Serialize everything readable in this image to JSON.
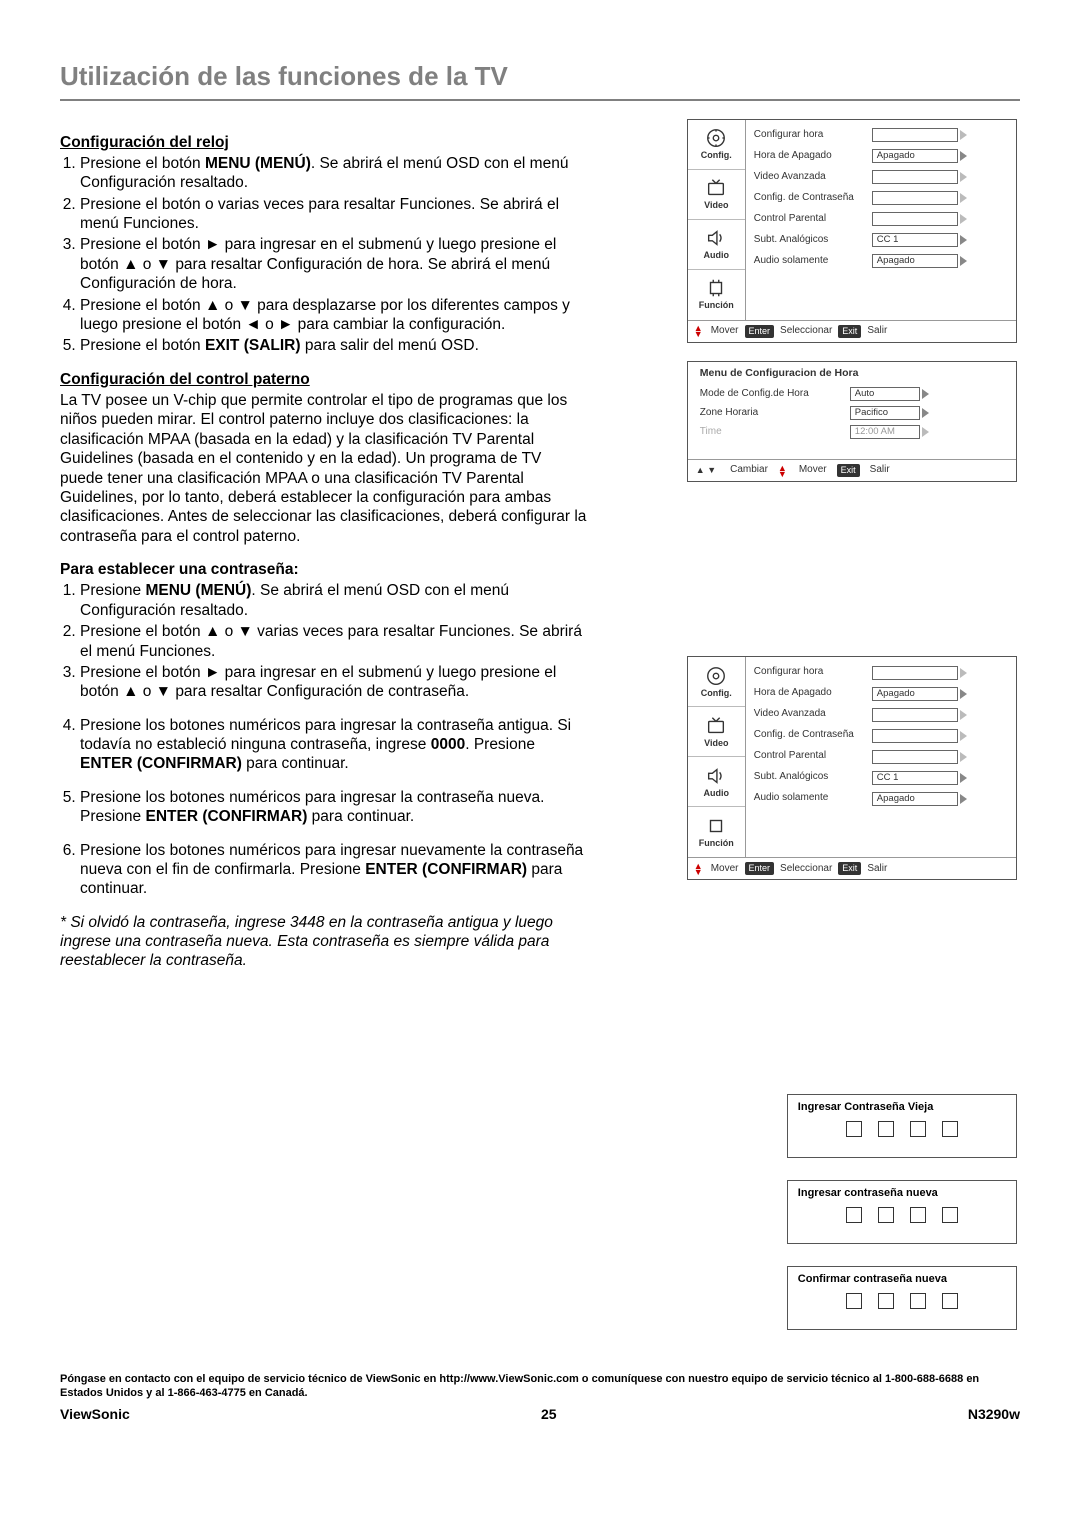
{
  "title": "Utilización de las funciones de la TV",
  "section1": {
    "heading": "Configuración del reloj",
    "items": [
      "Presione el botón <b>MENU (MENÚ)</b>. Se abrirá el menú OSD con el menú Configuración resaltado.",
      "Presione el botón o varias veces para resaltar Funciones. Se abrirá el menú Funciones.",
      "Presione el botón ► para ingresar en el submenú y luego presione el botón ▲ o ▼ para resaltar Configuración de hora. Se abrirá el menú Configuración de hora.",
      "Presione el botón ▲ o ▼ para desplazarse por los diferentes campos y luego presione el botón ◄ o ► para cambiar la configuración.",
      "Presione el botón <b>EXIT (SALIR)</b> para salir del menú OSD."
    ]
  },
  "section2": {
    "heading": "Configuración del control paterno",
    "para": "La TV posee un V-chip que permite controlar el tipo de programas que los niños pueden mirar. El control paterno incluye dos clasificaciones: la clasificación MPAA (basada en la edad) y la clasificación TV Parental Guidelines (basada en el contenido y en la edad). Un programa de TV puede tener una clasificación MPAA o una clasificación TV Parental Guidelines, por lo tanto, deberá establecer la configuración para ambas clasificaciones. Antes de seleccionar las clasificaciones, deberá configurar la contraseña para el control paterno."
  },
  "section3": {
    "heading": "Para establecer una contraseña:",
    "itemsA": [
      "Presione <b>MENU (MENÚ)</b>. Se abrirá el menú OSD con el menú Configuración resaltado.",
      "Presione el botón ▲ o ▼ varias veces para resaltar Funciones. Se abrirá el menú Funciones.",
      "Presione el botón ► para ingresar en el submenú y luego presione el botón ▲ o ▼ para resaltar Configuración de contraseña."
    ],
    "item4": "Presione los botones numéricos para ingresar la contraseña antigua. Si todavía no estableció ninguna contraseña, ingrese <b>0000</b>. Presione <b>ENTER (CONFIRMAR)</b> para continuar.",
    "item5": "Presione los botones numéricos para ingresar la contraseña nueva. Presione <b>ENTER (CONFIRMAR)</b> para continuar.",
    "item6": "Presione los botones numéricos para ingresar nuevamente la contraseña nueva con el fin de confirmarla. Presione <b>ENTER (CONFIRMAR)</b> para continuar."
  },
  "footnote": "* Si olvidó la contraseña, ingrese 3448 en la contraseña antigua y luego ingrese una contraseña nueva. Esta contraseña es siempre válida para reestablecer la contraseña.",
  "contact": "Póngase en contacto con el equipo de servicio técnico de ViewSonic en http://www.ViewSonic.com o comuníquese con nuestro equipo de servicio técnico al 1-800-688-6688 en Estados Unidos y al 1-866-463-4775 en Canadá.",
  "brand": "ViewSonic",
  "pageno": "25",
  "model": "N3290w",
  "osd": {
    "tabs": {
      "config": "Config.",
      "video": "Video",
      "audio": "Audio",
      "funcion": "Función"
    },
    "opts": [
      {
        "label": "Configurar hora",
        "val": "",
        "tri": "light"
      },
      {
        "label": "Hora de Apagado",
        "val": "Apagado"
      },
      {
        "label": "Video Avanzada",
        "val": "",
        "tri": "light"
      },
      {
        "label": "Config. de Contraseña",
        "val": "",
        "tri": "light"
      },
      {
        "label": "Control Parental",
        "val": "",
        "tri": "light"
      },
      {
        "label": "Subt. Analógicos",
        "val": "CC 1"
      },
      {
        "label": "Audio solamente",
        "val": "Apagado"
      }
    ],
    "footer": {
      "mover": "Mover",
      "enter": "Enter",
      "select": "Seleccionar",
      "exit": "Exit",
      "salir": "Salir"
    }
  },
  "timepanel": {
    "title": "Menu de Configuracion de Hora",
    "rows": [
      {
        "label": "Mode de Config.de Hora",
        "val": "Auto"
      },
      {
        "label": "Zone Horaria",
        "val": "Pacifico"
      },
      {
        "label": "Time",
        "val": "12:00 AM",
        "dim": true
      }
    ],
    "footer": {
      "cambiar": "Cambiar",
      "mover": "Mover",
      "exit": "Exit",
      "salir": "Salir"
    }
  },
  "pw": {
    "old": "Ingresar Contraseña Vieja",
    "new": "Ingresar contraseña nueva",
    "confirm": "Confirmar contraseña nueva"
  }
}
